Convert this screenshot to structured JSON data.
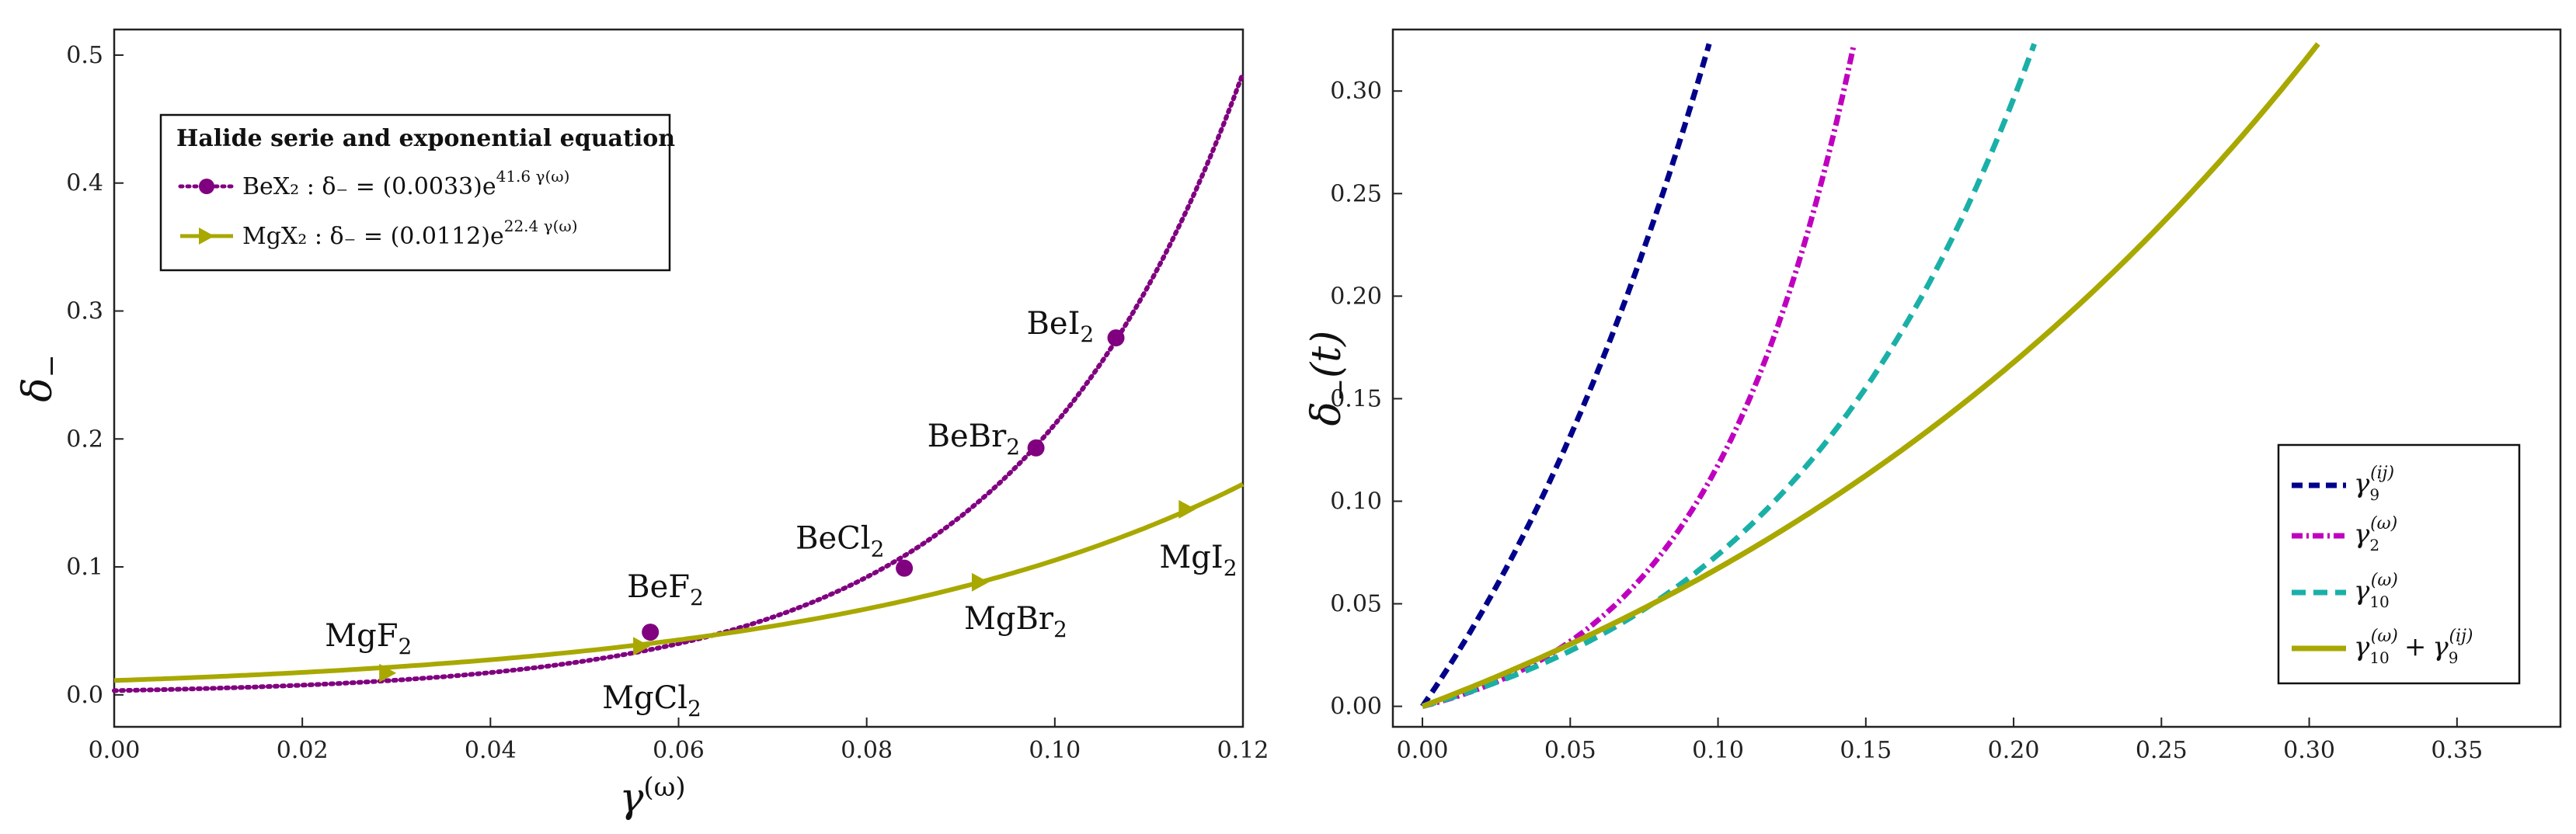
{
  "colors": {
    "be": "#800080",
    "mg": "#a8a800",
    "g9": "#00008b",
    "g2": "#bf00bf",
    "g10": "#1ab0a8",
    "combo": "#a8a800"
  },
  "chart_data": [
    {
      "type": "line",
      "xlabel": "γ(ω)",
      "ylabel": "δ₋",
      "xlim": [
        0,
        0.12
      ],
      "ylim": [
        -0.025,
        0.52
      ],
      "xticks": [
        "0.00",
        "0.02",
        "0.04",
        "0.06",
        "0.08",
        "0.10",
        "0.12"
      ],
      "xtick_values": [
        0,
        0.02,
        0.04,
        0.06,
        0.08,
        0.1,
        0.12
      ],
      "yticks": [
        "0.0",
        "0.1",
        "0.2",
        "0.3",
        "0.4",
        "0.5"
      ],
      "ytick_values": [
        0,
        0.1,
        0.2,
        0.3,
        0.4,
        0.5
      ],
      "legend_title": "Halide serie and exponential equation",
      "legend_position": "top-left",
      "series": [
        {
          "name": "BeX₂ : δ₋ = (0.0033)e^{41.6 γ(ω)}",
          "label_main": "BeX₂ : δ₋ = (0.0033)e",
          "label_exp": "41.6 γ(ω)",
          "style": "dotted",
          "marker": "circle",
          "a": 0.0033,
          "b": 41.6,
          "x_range": [
            0,
            0.12
          ]
        },
        {
          "name": "MgX₂ : δ₋ = (0.0112)e^{22.4 γ(ω)}",
          "label_main": "MgX₂ : δ₋ = (0.0112)e",
          "label_exp": "22.4 γ(ω)",
          "style": "solid",
          "marker": "triangle",
          "a": 0.0112,
          "b": 22.4,
          "x_range": [
            0,
            0.12
          ]
        }
      ],
      "points": [
        {
          "label": "BeF₂",
          "x": 0.057,
          "y": 0.049,
          "series": 0
        },
        {
          "label": "BeCl₂",
          "x": 0.084,
          "y": 0.099,
          "series": 0
        },
        {
          "label": "BeBr₂",
          "x": 0.098,
          "y": 0.193,
          "series": 0
        },
        {
          "label": "BeI₂",
          "x": 0.1065,
          "y": 0.279,
          "series": 0
        },
        {
          "label": "MgF₂",
          "x": 0.029,
          "y": 0.017,
          "series": 1
        },
        {
          "label": "MgCl₂",
          "x": 0.056,
          "y": 0.038,
          "series": 1
        },
        {
          "label": "MgBr₂",
          "x": 0.092,
          "y": 0.088,
          "series": 1
        },
        {
          "label": "MgI₂",
          "x": 0.114,
          "y": 0.145,
          "series": 1
        }
      ]
    },
    {
      "type": "line",
      "xlabel": "",
      "ylabel": "δ₋(t)",
      "xlim": [
        -0.01,
        0.385
      ],
      "ylim": [
        -0.01,
        0.33
      ],
      "xticks": [
        "0.00",
        "0.05",
        "0.10",
        "0.15",
        "0.20",
        "0.25",
        "0.30",
        "0.35"
      ],
      "xtick_values": [
        0,
        0.05,
        0.1,
        0.15,
        0.2,
        0.25,
        0.3,
        0.35
      ],
      "yticks": [
        "0.00",
        "0.05",
        "0.10",
        "0.15",
        "0.20",
        "0.25",
        "0.30"
      ],
      "ytick_values": [
        0,
        0.05,
        0.1,
        0.15,
        0.2,
        0.25,
        0.3
      ],
      "legend_position": "bottom-right",
      "series": [
        {
          "name": "γ9(ij)",
          "sym": "γ",
          "sub": "9",
          "sup": "(ij)",
          "style": "dashed",
          "x_end": 0.097,
          "y_end": 0.323,
          "k": 9
        },
        {
          "name": "γ2(ω)",
          "sym": "γ",
          "sub": "2",
          "sup": "(ω)",
          "style": "dashdot",
          "x_end": 0.146,
          "y_end": 0.323,
          "k": 20
        },
        {
          "name": "γ10(ω)",
          "sym": "γ",
          "sub": "10",
          "sup": "(ω)",
          "style": "dashed",
          "x_end": 0.207,
          "y_end": 0.323,
          "k": 11
        },
        {
          "name": "γ10(ω) + γ9(ij)",
          "sym": "γ",
          "sub": "10",
          "sup": "(ω)",
          "plus": "+",
          "sym2": "γ",
          "sub2": "9",
          "sup2": "(ij)",
          "style": "solid",
          "x_end": 0.303,
          "y_end": 0.323,
          "k": 4
        }
      ]
    }
  ]
}
